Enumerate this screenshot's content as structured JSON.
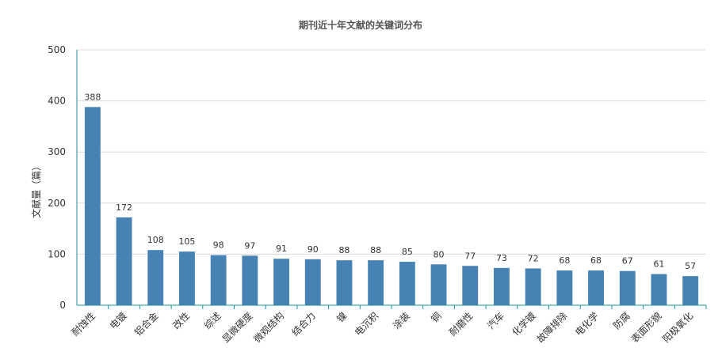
{
  "chart_data": {
    "type": "bar",
    "title": "期刊近十年文献的关键词分布",
    "ylabel": "文献量（篇）",
    "xlabel": "",
    "ylim": [
      0,
      500
    ],
    "yticks": [
      0,
      100,
      200,
      300,
      400,
      500
    ],
    "grid": true,
    "bar_color": "#4682b4",
    "axis_color": "#1f8fa0",
    "categories": [
      "耐蚀性",
      "电镀",
      "铝合金",
      "改性",
      "综述",
      "显微硬度",
      "微观结构",
      "结合力",
      "镍",
      "电沉积",
      "涂装",
      "铜",
      "耐磨性",
      "汽车",
      "化学镀",
      "故障排除",
      "电化学",
      "防腐",
      "表面形貌",
      "阳极氧化"
    ],
    "values": [
      388,
      172,
      108,
      105,
      98,
      97,
      91,
      90,
      88,
      88,
      85,
      80,
      77,
      73,
      72,
      68,
      68,
      67,
      61,
      57
    ]
  }
}
